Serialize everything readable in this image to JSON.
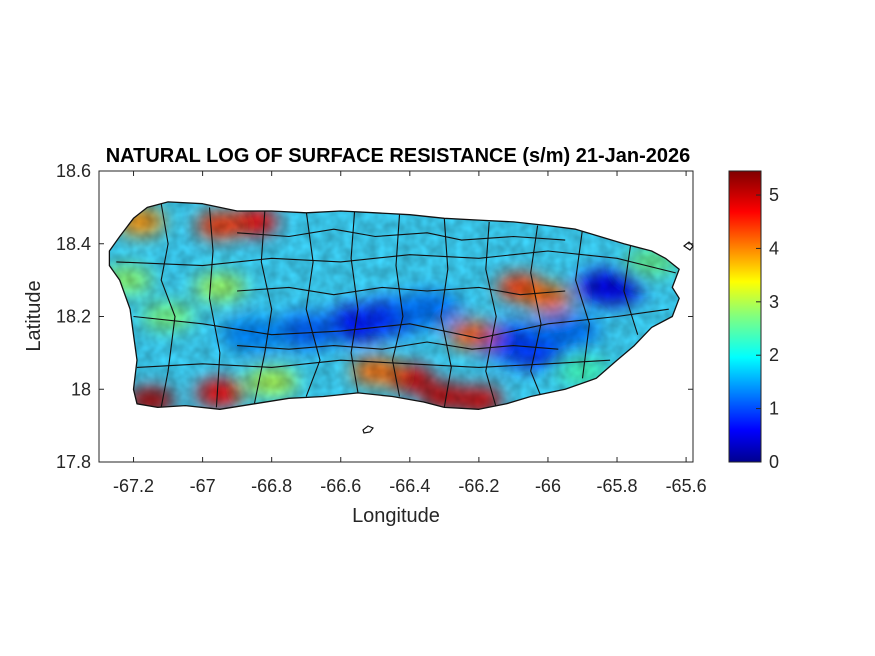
{
  "figure": {
    "title": "NATURAL LOG OF SURFACE RESISTANCE (s/m) 21-Jan-2026"
  },
  "chart_data": {
    "type": "heatmap",
    "region": "Puerto Rico",
    "title": "NATURAL LOG OF SURFACE RESISTANCE (s/m) 21-Jan-2026",
    "xlabel": "Longitude",
    "ylabel": "Latitude",
    "xlim": [
      -67.3,
      -65.58
    ],
    "ylim": [
      17.8,
      18.6
    ],
    "xticks": [
      -67.2,
      -67,
      -66.8,
      -66.6,
      -66.4,
      -66.2,
      -66,
      -65.8,
      -65.6
    ],
    "xtick_labels": [
      "-67.2",
      "-67",
      "-66.8",
      "-66.6",
      "-66.4",
      "-66.2",
      "-66",
      "-65.8",
      "-65.6"
    ],
    "yticks": [
      17.8,
      18,
      18.2,
      18.4,
      18.6
    ],
    "ytick_labels": [
      "17.8",
      "18",
      "18.2",
      "18.4",
      "18.6"
    ],
    "colorbar": {
      "colormap": "jet",
      "range": [
        0,
        5.45
      ],
      "ticks": [
        0,
        1,
        2,
        3,
        4,
        5
      ],
      "tick_labels": [
        "0",
        "1",
        "2",
        "3",
        "4",
        "5"
      ]
    },
    "colorscale_stops": [
      "#00008f",
      "#0000ff",
      "#0080ff",
      "#00ffff",
      "#80ff80",
      "#ffff00",
      "#ff8000",
      "#ff0000",
      "#800000"
    ],
    "field_features": [
      {
        "lon": -66.55,
        "lat": 18.18,
        "value": 0.6
      },
      {
        "lon": -66.45,
        "lat": 18.2,
        "value": 0.9
      },
      {
        "lon": -66.7,
        "lat": 18.16,
        "value": 1.2
      },
      {
        "lon": -66.85,
        "lat": 18.15,
        "value": 1.4
      },
      {
        "lon": -65.82,
        "lat": 18.28,
        "value": 0.5
      },
      {
        "lon": -66.05,
        "lat": 18.11,
        "value": 0.7
      },
      {
        "lon": -66.1,
        "lat": 18.13,
        "value": 1.0
      },
      {
        "lon": -65.95,
        "lat": 18.16,
        "value": 1.3
      },
      {
        "lon": -66.35,
        "lat": 18.22,
        "value": 1.3
      },
      {
        "lon": -67.15,
        "lat": 17.97,
        "value": 5.2
      },
      {
        "lon": -66.95,
        "lat": 17.99,
        "value": 4.8
      },
      {
        "lon": -66.4,
        "lat": 18.03,
        "value": 5.0
      },
      {
        "lon": -66.3,
        "lat": 17.98,
        "value": 5.1
      },
      {
        "lon": -66.2,
        "lat": 17.97,
        "value": 5.0
      },
      {
        "lon": -66.5,
        "lat": 18.05,
        "value": 4.2
      },
      {
        "lon": -66.85,
        "lat": 18.46,
        "value": 4.8
      },
      {
        "lon": -66.95,
        "lat": 18.45,
        "value": 4.5
      },
      {
        "lon": -67.18,
        "lat": 18.46,
        "value": 4.0
      },
      {
        "lon": -66.08,
        "lat": 18.28,
        "value": 4.5
      },
      {
        "lon": -66.22,
        "lat": 18.15,
        "value": 4.3
      },
      {
        "lon": -66.0,
        "lat": 18.25,
        "value": 4.2
      }
    ]
  }
}
